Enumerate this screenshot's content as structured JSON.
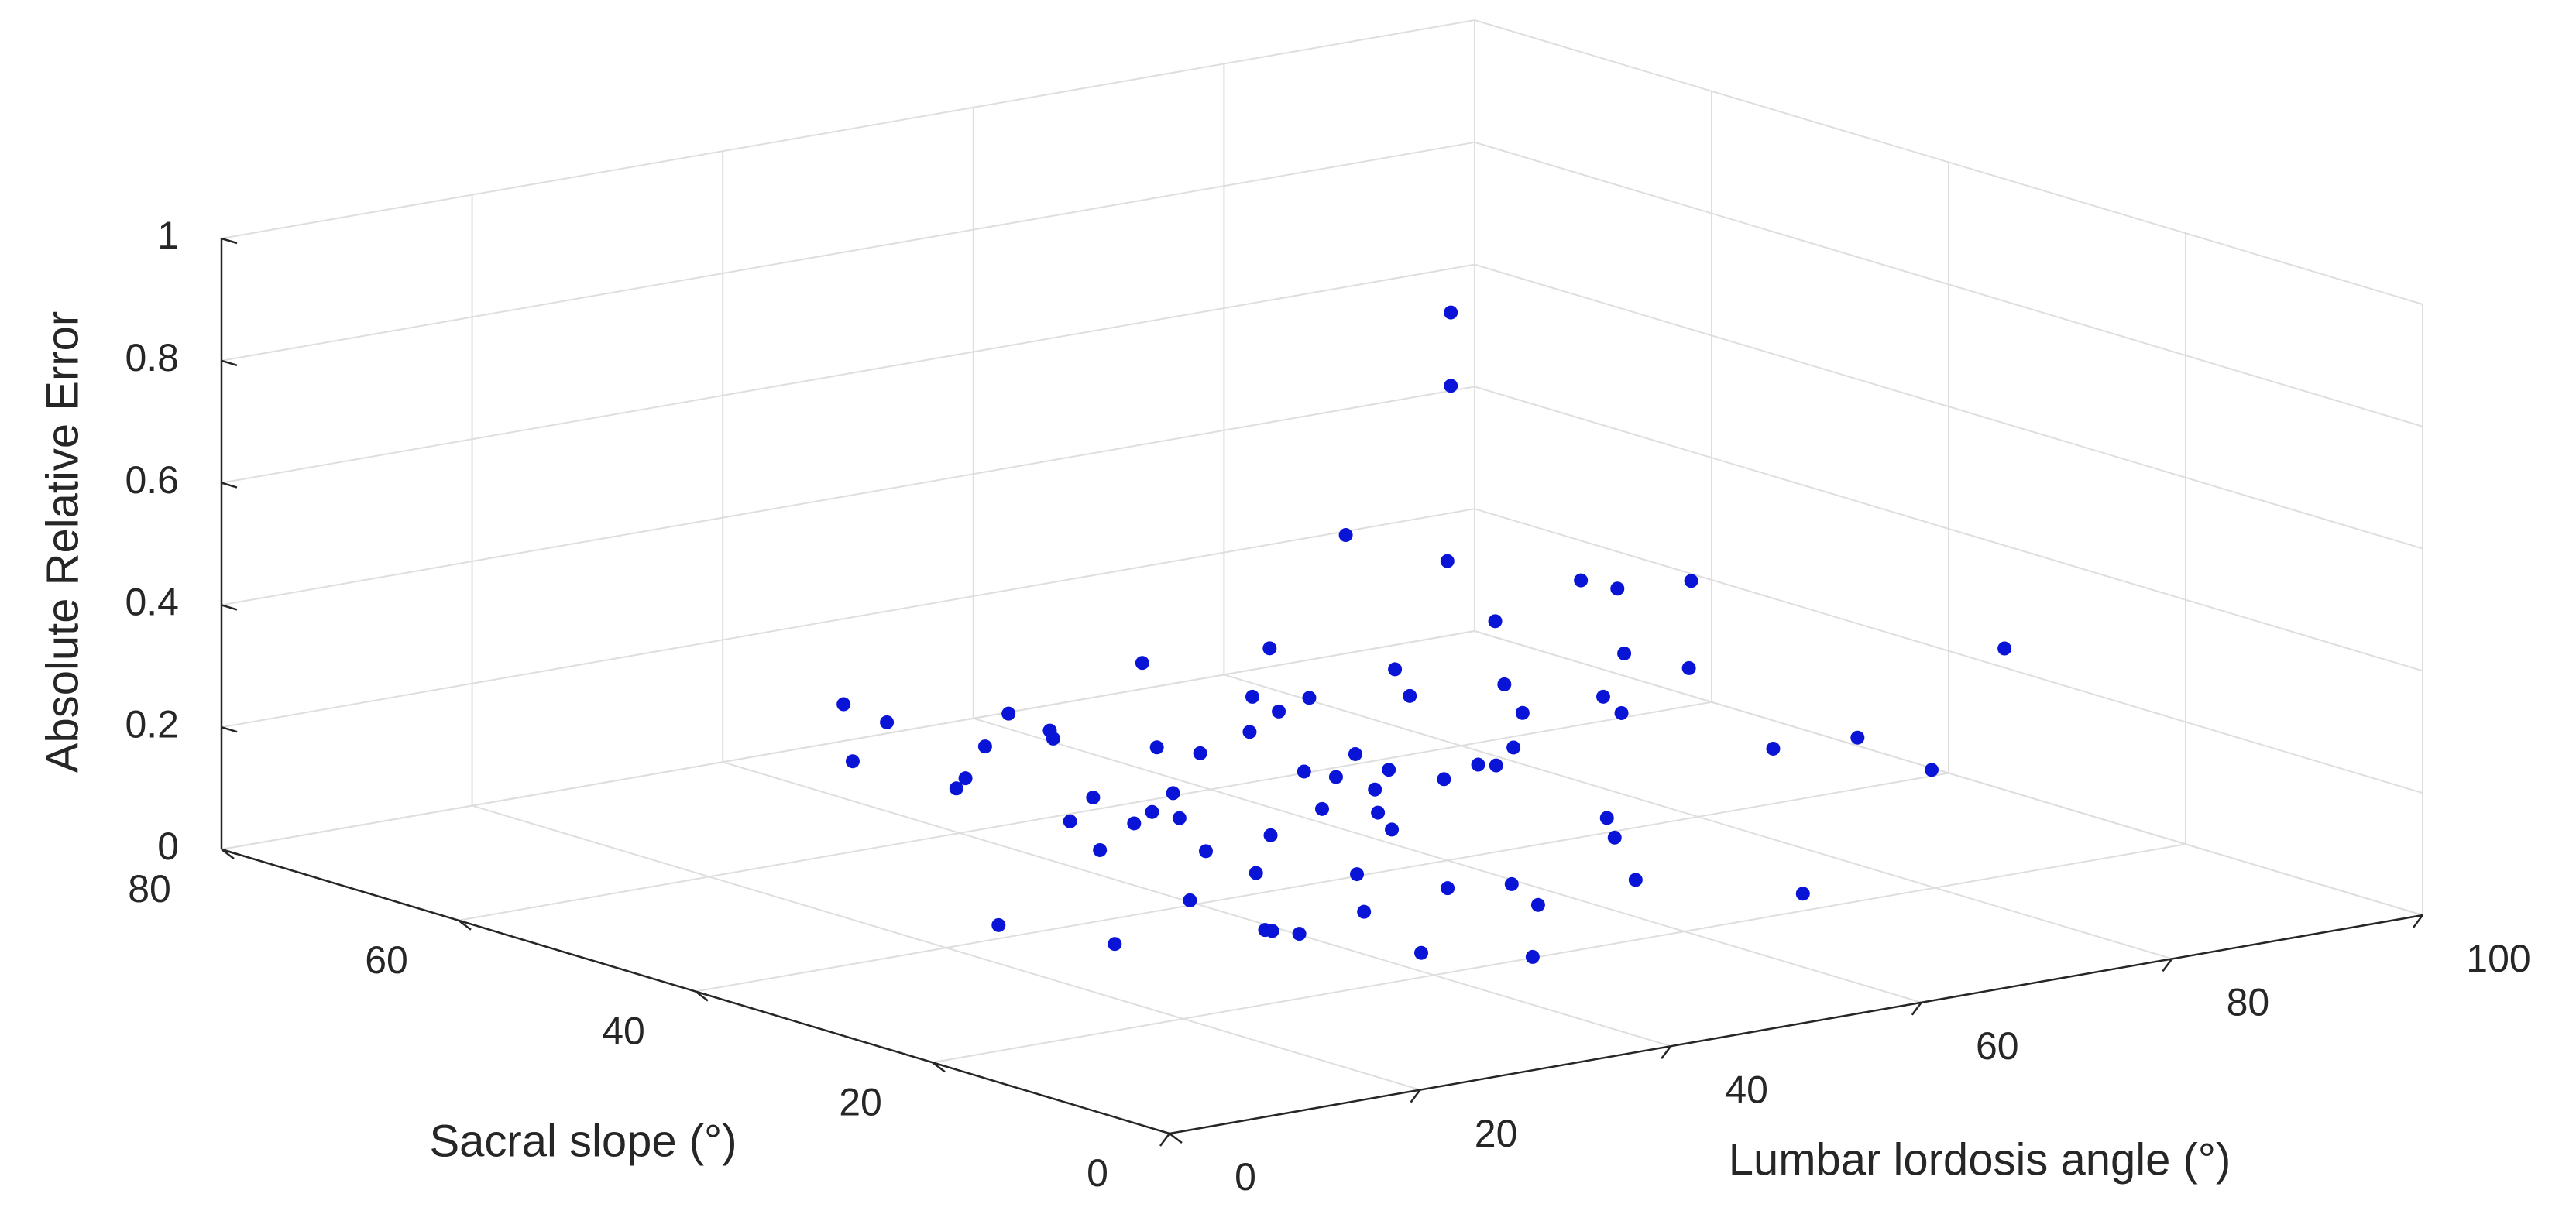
{
  "chart_data": {
    "type": "scatter3d",
    "xlabel": "Lumbar lordosis angle (°)",
    "ylabel": "Sacral slope (°)",
    "zlabel": "Absolute Relative Error",
    "color": "#0a14d6",
    "grid": true,
    "xlim": [
      0,
      100
    ],
    "xticks": [
      0,
      20,
      40,
      60,
      80,
      100
    ],
    "ylim": [
      0,
      80
    ],
    "yticks": [
      0,
      20,
      40,
      60,
      80
    ],
    "zlim": [
      0,
      1
    ],
    "zticks": [
      0,
      0.2,
      0.4,
      0.6,
      0.8,
      1
    ],
    "x": [
      65,
      65,
      95,
      20,
      70,
      66,
      60,
      75,
      10,
      50,
      60,
      30,
      35,
      40,
      45,
      50,
      55,
      38,
      42,
      48,
      52,
      58,
      62,
      66,
      70,
      74,
      28,
      33,
      36,
      44,
      47,
      51,
      56,
      60,
      64,
      68,
      72,
      76,
      80,
      84,
      25,
      24,
      29,
      34,
      39,
      43,
      46,
      50,
      54,
      58,
      62,
      40,
      44,
      48,
      53,
      57,
      61,
      36,
      32,
      27,
      66,
      70,
      78,
      82,
      86,
      88,
      45,
      41,
      53,
      49,
      37,
      31,
      22,
      26,
      35,
      42
    ],
    "y": [
      45,
      45,
      30,
      45,
      30,
      32,
      10,
      15,
      25,
      38,
      40,
      30,
      40,
      35,
      45,
      40,
      35,
      50,
      28,
      32,
      48,
      44,
      38,
      40,
      45,
      50,
      38,
      45,
      30,
      38,
      52,
      55,
      50,
      55,
      52,
      35,
      38,
      42,
      48,
      45,
      42,
      30,
      22,
      25,
      20,
      22,
      18,
      24,
      26,
      22,
      28,
      42,
      48,
      44,
      42,
      40,
      46,
      35,
      33,
      35,
      58,
      55,
      55,
      52,
      40,
      35,
      30,
      32,
      30,
      36,
      45,
      50,
      50,
      55,
      55,
      58
    ],
    "z": [
      0.85,
      0.73,
      0.28,
      0.34,
      0.48,
      0.47,
      0.12,
      0.24,
      0.16,
      0.58,
      0.49,
      0.1,
      0.15,
      0.08,
      0.2,
      0.12,
      0.18,
      0.22,
      0.05,
      0.14,
      0.25,
      0.1,
      0.16,
      0.22,
      0.12,
      0.18,
      0.19,
      0.28,
      0.03,
      0.11,
      0.3,
      0.13,
      0.2,
      0.26,
      0.09,
      0.07,
      0.21,
      0.27,
      0.15,
      0.2,
      0.3,
      0.05,
      0.1,
      0.06,
      0.04,
      0.12,
      0.02,
      0.09,
      0.03,
      0.08,
      0.1,
      0.17,
      0.09,
      0.23,
      0.15,
      0.28,
      0.11,
      0.13,
      0.21,
      0.25,
      0.14,
      0.19,
      0.24,
      0.31,
      0.09,
      0.13,
      0.19,
      0.26,
      0.24,
      0.04,
      0.07,
      0.18,
      0.24,
      0.29,
      0.12,
      0.2
    ]
  }
}
